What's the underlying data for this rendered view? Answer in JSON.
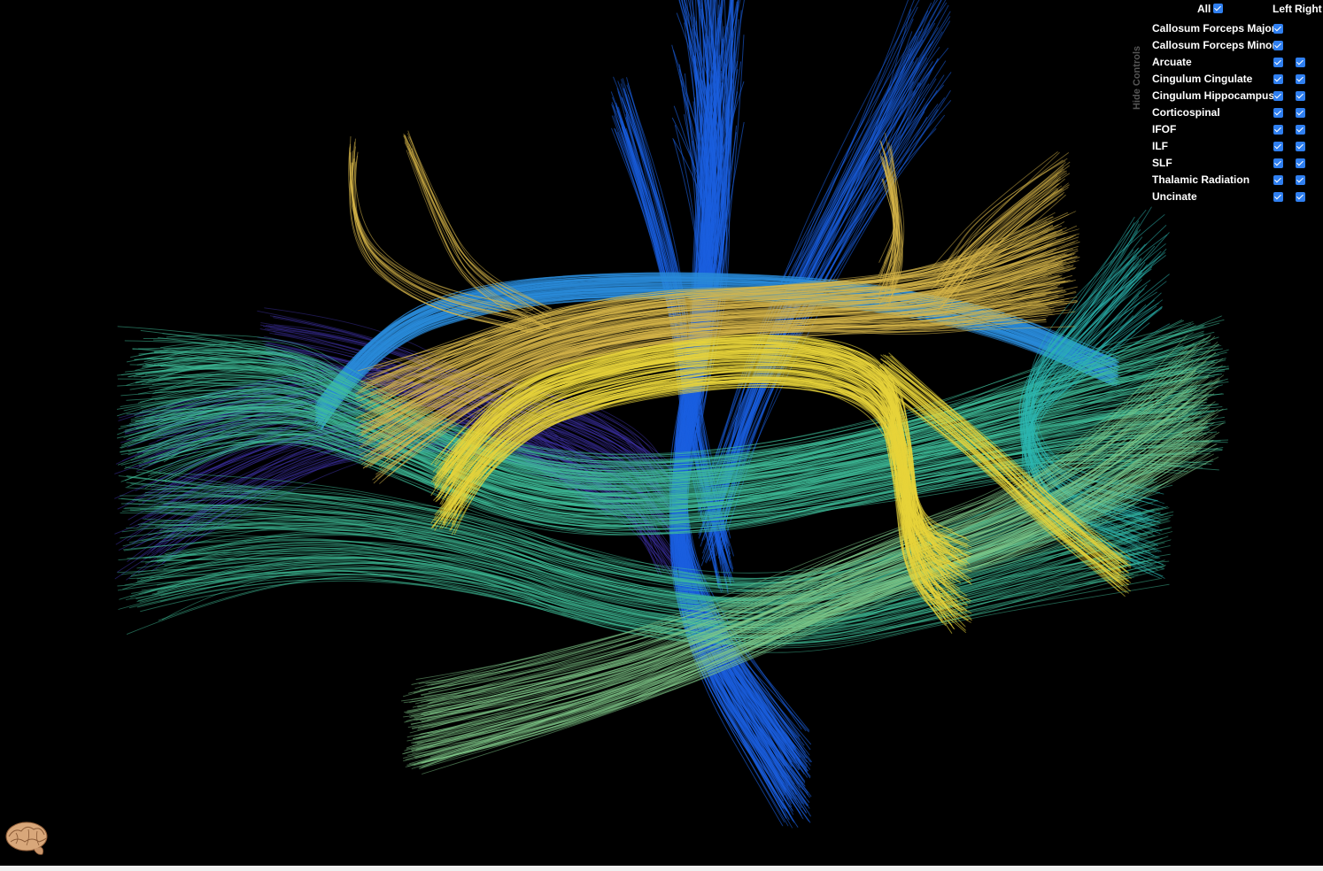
{
  "controls": {
    "hide_label": "Hide Controls",
    "all_label": "All",
    "left_label": "Left",
    "right_label": "Right",
    "tracts": [
      {
        "label": "Callosum Forceps Major",
        "left": true,
        "right": null
      },
      {
        "label": "Callosum Forceps Minor",
        "left": true,
        "right": null
      },
      {
        "label": "Arcuate",
        "left": true,
        "right": true
      },
      {
        "label": "Cingulum Cingulate",
        "left": true,
        "right": true
      },
      {
        "label": "Cingulum Hippocampus",
        "left": true,
        "right": true
      },
      {
        "label": "Corticospinal",
        "left": true,
        "right": true
      },
      {
        "label": "IFOF",
        "left": true,
        "right": true
      },
      {
        "label": "ILF",
        "left": true,
        "right": true
      },
      {
        "label": "SLF",
        "left": true,
        "right": true
      },
      {
        "label": "Thalamic Radiation",
        "left": true,
        "right": true
      },
      {
        "label": "Uncinate",
        "left": true,
        "right": true
      }
    ]
  },
  "colors": {
    "background": "#000000",
    "checkbox": "#2f7ff0",
    "corticospinal_blue": "#1a5fe0",
    "cingulum_blue": "#2a8ad8",
    "ifof_teal": "#3fbf9a",
    "arcuate_yellow": "#e8d43a",
    "slf_gold": "#d9b84a",
    "uncinate_teal": "#2bb7b0",
    "thalamic_indigo": "#3b2f9e",
    "ilf_green": "#7fc98a"
  },
  "icons": {
    "brain": "brain-icon",
    "checkbox": "checkbox-checked-icon"
  }
}
